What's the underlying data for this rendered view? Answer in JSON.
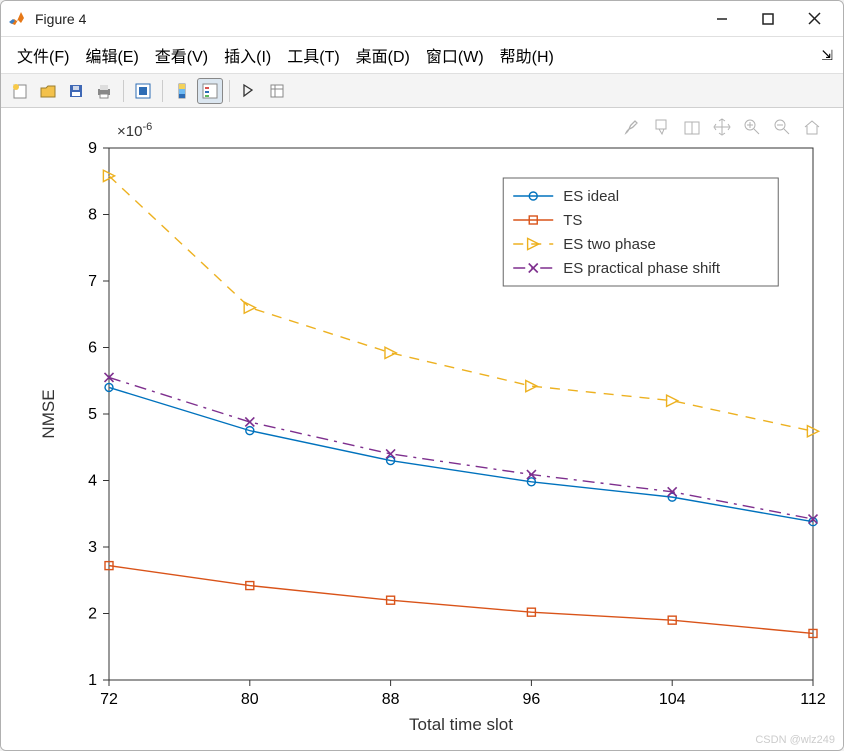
{
  "window": {
    "title": "Figure 4"
  },
  "menu": {
    "file": "文件(F)",
    "edit": "编辑(E)",
    "view": "查看(V)",
    "insert": "插入(I)",
    "tools": "工具(T)",
    "desktop": "桌面(D)",
    "window_menu": "窗口(W)",
    "help": "帮助(H)"
  },
  "chart": {
    "type": "line",
    "xlabel": "Total time slot",
    "ylabel": "NMSE",
    "exponent_text": "×10",
    "exponent_sup": "-6",
    "xlim": [
      72,
      112
    ],
    "ylim": [
      1,
      9
    ],
    "xticks": [
      72,
      80,
      88,
      96,
      104,
      112
    ],
    "yticks": [
      1,
      2,
      3,
      4,
      5,
      6,
      7,
      8,
      9
    ],
    "grid": false,
    "background_color": "#ffffff",
    "axis_color": "#333333",
    "legend": {
      "position": "upper-right",
      "box": true,
      "items": [
        "ES ideal",
        "TS",
        "ES two phase",
        "ES practical phase shift"
      ]
    },
    "series": [
      {
        "name": "ES ideal",
        "color": "#0072bd",
        "linestyle": "solid",
        "linewidth": 1.4,
        "marker": "circle",
        "markersize": 8,
        "x": [
          72,
          80,
          88,
          96,
          104,
          112
        ],
        "y": [
          5.4,
          4.75,
          4.3,
          3.98,
          3.75,
          3.38
        ]
      },
      {
        "name": "TS",
        "color": "#d95319",
        "linestyle": "solid",
        "linewidth": 1.4,
        "marker": "square",
        "markersize": 8,
        "x": [
          72,
          80,
          88,
          96,
          104,
          112
        ],
        "y": [
          2.72,
          2.42,
          2.2,
          2.02,
          1.9,
          1.7
        ]
      },
      {
        "name": "ES two phase",
        "color": "#edb120",
        "linestyle": "dashed",
        "linewidth": 1.4,
        "marker": "triangle-right",
        "markersize": 9,
        "x": [
          72,
          80,
          88,
          96,
          104,
          112
        ],
        "y": [
          8.58,
          6.6,
          5.92,
          5.42,
          5.2,
          4.74
        ]
      },
      {
        "name": "ES practical phase shift",
        "color": "#7e2f8e",
        "linestyle": "dashdot",
        "linewidth": 1.4,
        "marker": "x",
        "markersize": 9,
        "x": [
          72,
          80,
          88,
          96,
          104,
          112
        ],
        "y": [
          5.55,
          4.88,
          4.4,
          4.09,
          3.83,
          3.42
        ]
      }
    ]
  },
  "watermark": "CSDN @wlz249"
}
